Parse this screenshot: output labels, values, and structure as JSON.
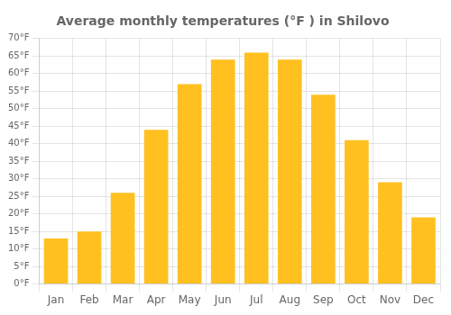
{
  "chart_data": {
    "type": "bar",
    "title": "Average monthly temperatures (°F ) in Shilovo",
    "categories": [
      "Jan",
      "Feb",
      "Mar",
      "Apr",
      "May",
      "Jun",
      "Jul",
      "Aug",
      "Sep",
      "Oct",
      "Nov",
      "Dec"
    ],
    "values": [
      13,
      15,
      26,
      44,
      57,
      64,
      66,
      64,
      54,
      41,
      29,
      19
    ],
    "color": "#FFC020",
    "ylim": [
      0,
      70
    ],
    "yticks": [
      {
        "value": 0,
        "label": "0°F"
      },
      {
        "value": 5,
        "label": "5°F"
      },
      {
        "value": 10,
        "label": "10°F"
      },
      {
        "value": 15,
        "label": "15°F"
      },
      {
        "value": 20,
        "label": "20°F"
      },
      {
        "value": 25,
        "label": "25°F"
      },
      {
        "value": 30,
        "label": "30°F"
      },
      {
        "value": 35,
        "label": "35°F"
      },
      {
        "value": 40,
        "label": "40°F"
      },
      {
        "value": 45,
        "label": "45°F"
      },
      {
        "value": 50,
        "label": "50°F"
      },
      {
        "value": 55,
        "label": "55°F"
      },
      {
        "value": 60,
        "label": "60°F"
      },
      {
        "value": 65,
        "label": "65°F"
      },
      {
        "value": 70,
        "label": "70°F"
      }
    ],
    "grid": true
  }
}
